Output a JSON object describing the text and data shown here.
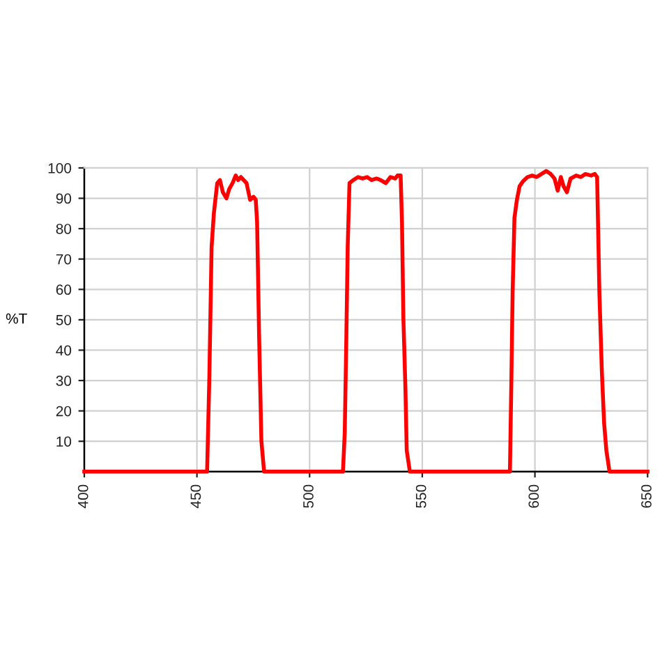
{
  "chart_data": {
    "type": "line",
    "ylabel": "%T",
    "x": [
      400,
      454.5,
      455.5,
      456.5,
      457.5,
      459,
      460.2,
      461.5,
      463.1,
      464.3,
      465.8,
      467.2,
      468.3,
      469.5,
      472,
      473.6,
      475.1,
      476.1,
      476.7,
      477.6,
      478.6,
      479.8,
      514.8,
      515.6,
      516.3,
      516.9,
      517.7,
      519.4,
      521.5,
      523.5,
      525.5,
      527.5,
      529.7,
      531.5,
      533.8,
      535.9,
      538,
      539,
      540.4,
      541,
      541.6,
      542.5,
      543.1,
      544.5,
      588.9,
      589.5,
      590.1,
      590.9,
      592,
      593.2,
      594.6,
      596.7,
      598.8,
      600.8,
      602.9,
      605,
      607,
      608.7,
      610.1,
      611.5,
      612.7,
      614.2,
      615.8,
      618.3,
      620.4,
      622.4,
      624.9,
      626.6,
      627.6,
      628,
      628.6,
      629.7,
      630.7,
      631.7,
      633.1,
      650
    ],
    "series": [
      {
        "color": "#ff0000",
        "values": [
          0,
          0,
          31,
          74,
          85,
          95,
          96,
          92,
          90,
          93,
          95,
          97.5,
          96,
          97,
          95,
          89.5,
          90.5,
          89.5,
          82,
          44,
          10,
          0,
          0,
          13,
          44,
          74,
          95,
          96,
          97,
          96.5,
          97,
          96,
          96.5,
          96,
          95,
          97,
          96.5,
          97.5,
          97.5,
          82,
          51,
          28,
          7,
          0,
          0,
          28,
          59,
          83.5,
          89.5,
          94,
          95.5,
          97,
          97.5,
          97,
          98,
          99,
          98,
          96.5,
          92.5,
          97,
          94,
          92,
          96.5,
          97.5,
          97,
          98,
          97.5,
          98,
          97,
          82,
          59,
          33,
          16,
          7,
          0,
          0
        ]
      }
    ],
    "xlim": [
      400,
      650
    ],
    "xticks": [
      400,
      450,
      500,
      550,
      600,
      650
    ],
    "ylim": [
      0,
      100
    ],
    "yticks": [
      10,
      20,
      30,
      40,
      50,
      60,
      70,
      80,
      90,
      100
    ],
    "grid": true,
    "marker": "none",
    "line_style": "solid"
  }
}
